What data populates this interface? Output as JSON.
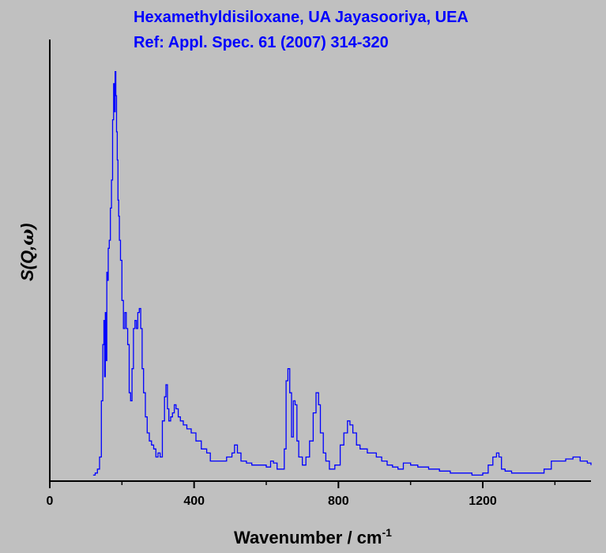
{
  "chart_data": {
    "type": "line",
    "title": "Hexamethyldisiloxane, UA Jayasooriya, UEA",
    "subtitle": "Ref: Appl. Spec. 61 (2007) 314-320",
    "xlabel": "Wavenumber / cm",
    "xlabel_superscript": "-1",
    "ylabel_main": "S(Q,",
    "ylabel_omega": "ω",
    "ylabel_close": ")",
    "xlim": [
      0,
      1500
    ],
    "ylim": [
      0,
      1.1
    ],
    "x_ticks": [
      0,
      400,
      800,
      1200
    ],
    "x_tick_labels": [
      "0",
      "400",
      "800",
      "1200"
    ],
    "grid": false,
    "colors": {
      "series": "#0000ff",
      "title": "#0000ff",
      "axis": "#000000",
      "background": "#c0c0c0"
    },
    "series": [
      {
        "x": [
          120,
          126,
          132,
          138,
          143,
          147,
          150,
          152,
          154,
          156,
          158,
          160,
          162,
          165,
          168,
          171,
          174,
          177,
          179,
          181,
          183,
          185,
          187,
          189,
          191,
          193,
          196,
          200,
          204,
          208,
          212,
          216,
          220,
          224,
          228,
          232,
          236,
          240,
          244,
          248,
          252,
          256,
          260,
          265,
          270,
          276,
          282,
          288,
          294,
          300,
          306,
          312,
          318,
          322,
          326,
          330,
          335,
          340,
          345,
          350,
          356,
          362,
          370,
          380,
          392,
          405,
          420,
          435,
          445,
          455,
          470,
          490,
          505,
          512,
          520,
          530,
          545,
          560,
          580,
          600,
          612,
          620,
          630,
          640,
          650,
          655,
          660,
          665,
          670,
          675,
          680,
          685,
          690,
          700,
          710,
          720,
          730,
          738,
          745,
          750,
          758,
          765,
          775,
          790,
          805,
          815,
          825,
          832,
          840,
          850,
          860,
          870,
          880,
          890,
          905,
          920,
          935,
          950,
          965,
          980,
          1000,
          1020,
          1050,
          1080,
          1110,
          1140,
          1170,
          1200,
          1215,
          1228,
          1238,
          1245,
          1252,
          1262,
          1280,
          1310,
          1340,
          1370,
          1390,
          1410,
          1430,
          1450,
          1470,
          1490,
          1500
        ],
        "y": [
          0.015,
          0.02,
          0.03,
          0.06,
          0.2,
          0.34,
          0.4,
          0.26,
          0.42,
          0.3,
          0.52,
          0.5,
          0.58,
          0.6,
          0.68,
          0.75,
          0.9,
          0.99,
          0.92,
          1.02,
          0.96,
          0.87,
          0.8,
          0.7,
          0.66,
          0.6,
          0.55,
          0.45,
          0.38,
          0.42,
          0.38,
          0.34,
          0.22,
          0.2,
          0.28,
          0.38,
          0.4,
          0.38,
          0.42,
          0.43,
          0.38,
          0.28,
          0.22,
          0.16,
          0.12,
          0.1,
          0.09,
          0.08,
          0.06,
          0.07,
          0.06,
          0.15,
          0.21,
          0.24,
          0.18,
          0.15,
          0.16,
          0.17,
          0.19,
          0.18,
          0.16,
          0.15,
          0.14,
          0.13,
          0.12,
          0.1,
          0.08,
          0.07,
          0.05,
          0.05,
          0.05,
          0.06,
          0.07,
          0.09,
          0.07,
          0.05,
          0.045,
          0.04,
          0.04,
          0.035,
          0.05,
          0.045,
          0.03,
          0.03,
          0.08,
          0.25,
          0.28,
          0.22,
          0.11,
          0.2,
          0.19,
          0.1,
          0.06,
          0.04,
          0.06,
          0.1,
          0.17,
          0.22,
          0.19,
          0.12,
          0.07,
          0.05,
          0.03,
          0.04,
          0.09,
          0.12,
          0.15,
          0.14,
          0.12,
          0.09,
          0.08,
          0.08,
          0.07,
          0.07,
          0.06,
          0.05,
          0.04,
          0.035,
          0.03,
          0.045,
          0.04,
          0.035,
          0.03,
          0.025,
          0.02,
          0.02,
          0.015,
          0.02,
          0.04,
          0.06,
          0.07,
          0.06,
          0.03,
          0.025,
          0.02,
          0.02,
          0.02,
          0.03,
          0.05,
          0.05,
          0.055,
          0.06,
          0.05,
          0.045,
          0.04
        ]
      }
    ]
  }
}
